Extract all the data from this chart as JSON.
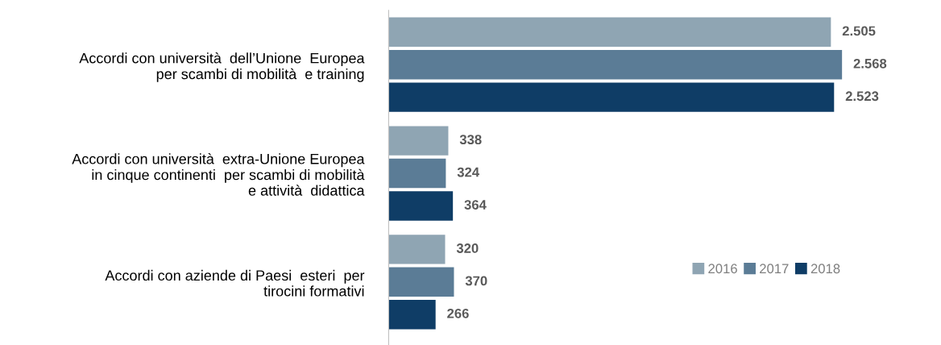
{
  "chart_data": {
    "type": "bar",
    "orientation": "horizontal",
    "categories": [
      "Accordi con università  dell’Unione  Europea\nper scambi di mobilità  e training",
      "Accordi con università  extra-Unione Europea\nin cinque continenti  per scambi di mobilità\ne attività  didattica",
      "Accordi con aziende di Paesi  esteri  per\ntirocini formativi"
    ],
    "series": [
      {
        "name": "2016",
        "color": "#8fa5b3",
        "values": [
          2505,
          338,
          320
        ],
        "value_labels": [
          "2.505",
          "338",
          "320"
        ]
      },
      {
        "name": "2017",
        "color": "#5b7c96",
        "values": [
          2568,
          324,
          370
        ],
        "value_labels": [
          "2.568",
          "324",
          "370"
        ]
      },
      {
        "name": "2018",
        "color": "#0f3d66",
        "values": [
          2523,
          364,
          266
        ],
        "value_labels": [
          "2.523",
          "364",
          "266"
        ]
      }
    ],
    "legend": "bottom right",
    "grid": false,
    "tick_labels": "y"
  }
}
